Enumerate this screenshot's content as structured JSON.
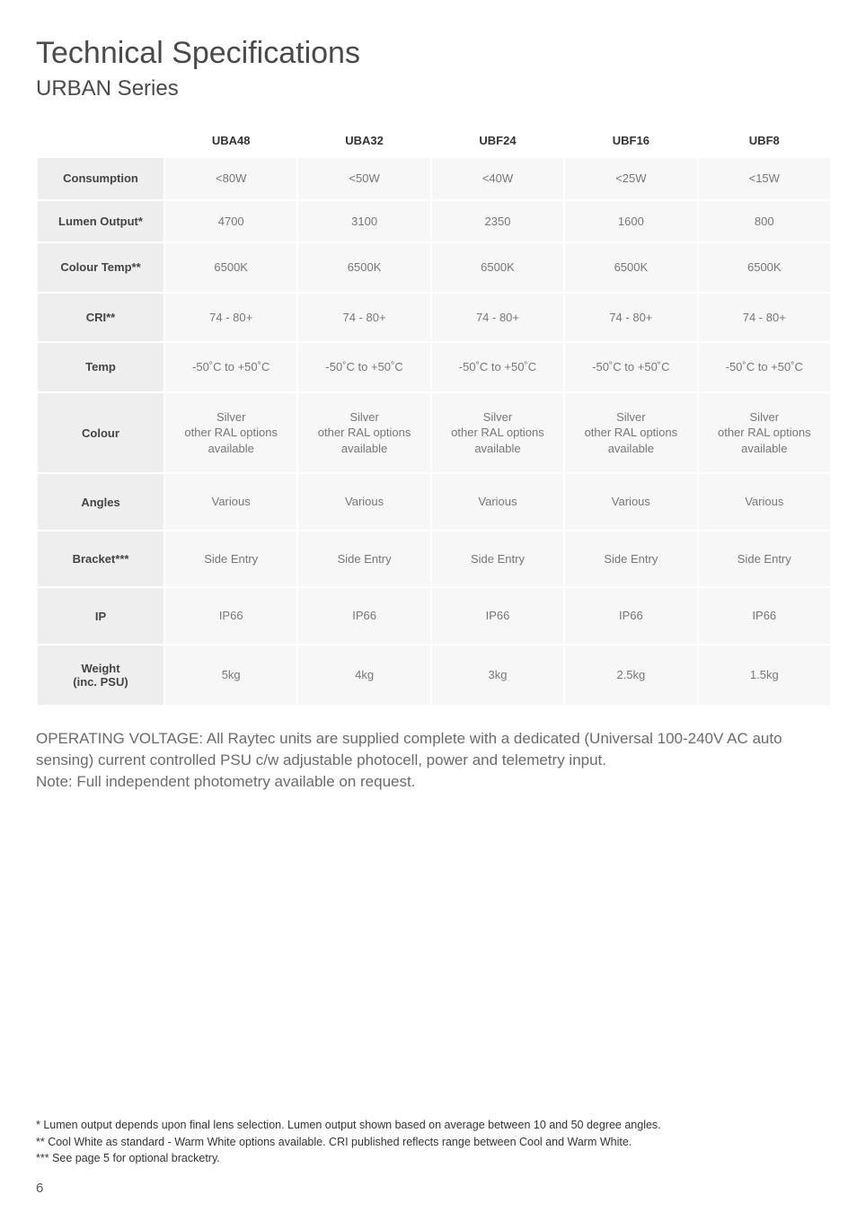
{
  "title": "Technical Specifications",
  "subtitle": "URBAN Series",
  "table": {
    "columns": [
      "UBA48",
      "UBA32",
      "UBF24",
      "UBF16",
      "UBF8"
    ],
    "rows": [
      {
        "label": "Consumption",
        "cells": [
          "<80W",
          "<50W",
          "<40W",
          "<25W",
          "<15W"
        ],
        "class": ""
      },
      {
        "label": "Lumen Output*",
        "cells": [
          "4700",
          "3100",
          "2350",
          "1600",
          "800"
        ],
        "class": ""
      },
      {
        "label": "Colour Temp**",
        "cells": [
          "6500K",
          "6500K",
          "6500K",
          "6500K",
          "6500K"
        ],
        "class": "med"
      },
      {
        "label": "CRI**",
        "cells": [
          "74 - 80+",
          "74 - 80+",
          "74 - 80+",
          "74 - 80+",
          "74 - 80+"
        ],
        "class": "med"
      },
      {
        "label": "Temp",
        "cells": [
          "-50˚C to +50˚C",
          "-50˚C to +50˚C",
          "-50˚C to +50˚C",
          "-50˚C to +50˚C",
          "-50˚C to +50˚C"
        ],
        "class": "med"
      },
      {
        "label": "Colour",
        "cells": [
          "Silver\nother RAL options\navailable",
          "Silver\nother RAL options\navailable",
          "Silver\nother RAL options\navailable",
          "Silver\nother RAL options\navailable",
          "Silver\nother RAL options\navailable"
        ],
        "class": "med"
      },
      {
        "label": "Angles",
        "cells": [
          "Various",
          "Various",
          "Various",
          "Various",
          "Various"
        ],
        "class": "tall"
      },
      {
        "label": "Bracket***",
        "cells": [
          "Side Entry",
          "Side Entry",
          "Side Entry",
          "Side Entry",
          "Side Entry"
        ],
        "class": "tall"
      },
      {
        "label": "IP",
        "cells": [
          "IP66",
          "IP66",
          "IP66",
          "IP66",
          "IP66"
        ],
        "class": "tall"
      },
      {
        "label": "Weight\n(inc. PSU)",
        "cells": [
          "5kg",
          "4kg",
          "3kg",
          "2.5kg",
          "1.5kg"
        ],
        "class": "med"
      }
    ]
  },
  "body_text": "OPERATING VOLTAGE: All Raytec units are supplied complete with a dedicated (Universal 100-240V AC auto sensing) current controlled PSU c/w adjustable photocell, power and telemetry input.\nNote: Full independent photometry available on request.",
  "footnotes": [
    "* Lumen output depends upon final lens selection. Lumen output shown based on average between 10 and 50 degree angles.",
    "** Cool White as standard - Warm White options available. CRI published reflects range between Cool and Warm White.",
    "*** See page 5 for optional bracketry."
  ],
  "page_number": "6"
}
